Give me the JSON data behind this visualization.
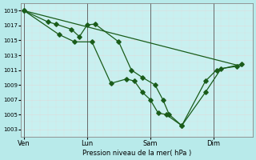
{
  "background_color": "#b8eaea",
  "plot_bg_color": "#c8f0f0",
  "grid_color": "#d8f8f8",
  "line_color": "#1a5c1a",
  "marker_color": "#1a5c1a",
  "xlabel": "Pression niveau de la mer( hPa )",
  "ylim": [
    1002,
    1020
  ],
  "yticks": [
    1003,
    1005,
    1007,
    1009,
    1011,
    1013,
    1015,
    1017,
    1019
  ],
  "xtick_labels": [
    "Ven",
    "Lun",
    "Sam",
    "Dim"
  ],
  "xtick_positions": [
    0,
    4,
    8,
    12
  ],
  "vline_positions": [
    0,
    4,
    8,
    12
  ],
  "xlim": [
    -0.2,
    14.5
  ],
  "series1_x": [
    0,
    1.5,
    2.0,
    3.0,
    3.5,
    4.0,
    4.5,
    6.0,
    6.8,
    7.5,
    8.3,
    8.8,
    9.2,
    10.0,
    11.5,
    12.5,
    13.5
  ],
  "series1_y": [
    1019,
    1017.5,
    1017.2,
    1016.5,
    1015.5,
    1017.1,
    1017.2,
    1014.8,
    1011.0,
    1010.0,
    1009.0,
    1007.0,
    1005.0,
    1003.5,
    1008.0,
    1011.2,
    1011.5
  ],
  "series2_x": [
    0,
    2.2,
    3.2,
    4.3,
    5.5,
    6.5,
    7.0,
    7.5,
    8.0,
    8.5,
    9.0,
    10.0,
    11.5,
    12.2,
    13.8
  ],
  "series2_y": [
    1019,
    1015.8,
    1014.8,
    1014.8,
    1009.2,
    1009.8,
    1009.5,
    1008.0,
    1007.0,
    1005.2,
    1005.0,
    1003.5,
    1009.5,
    1011.0,
    1011.8
  ],
  "series3_x": [
    0,
    13.8
  ],
  "series3_y": [
    1019,
    1011.5
  ]
}
